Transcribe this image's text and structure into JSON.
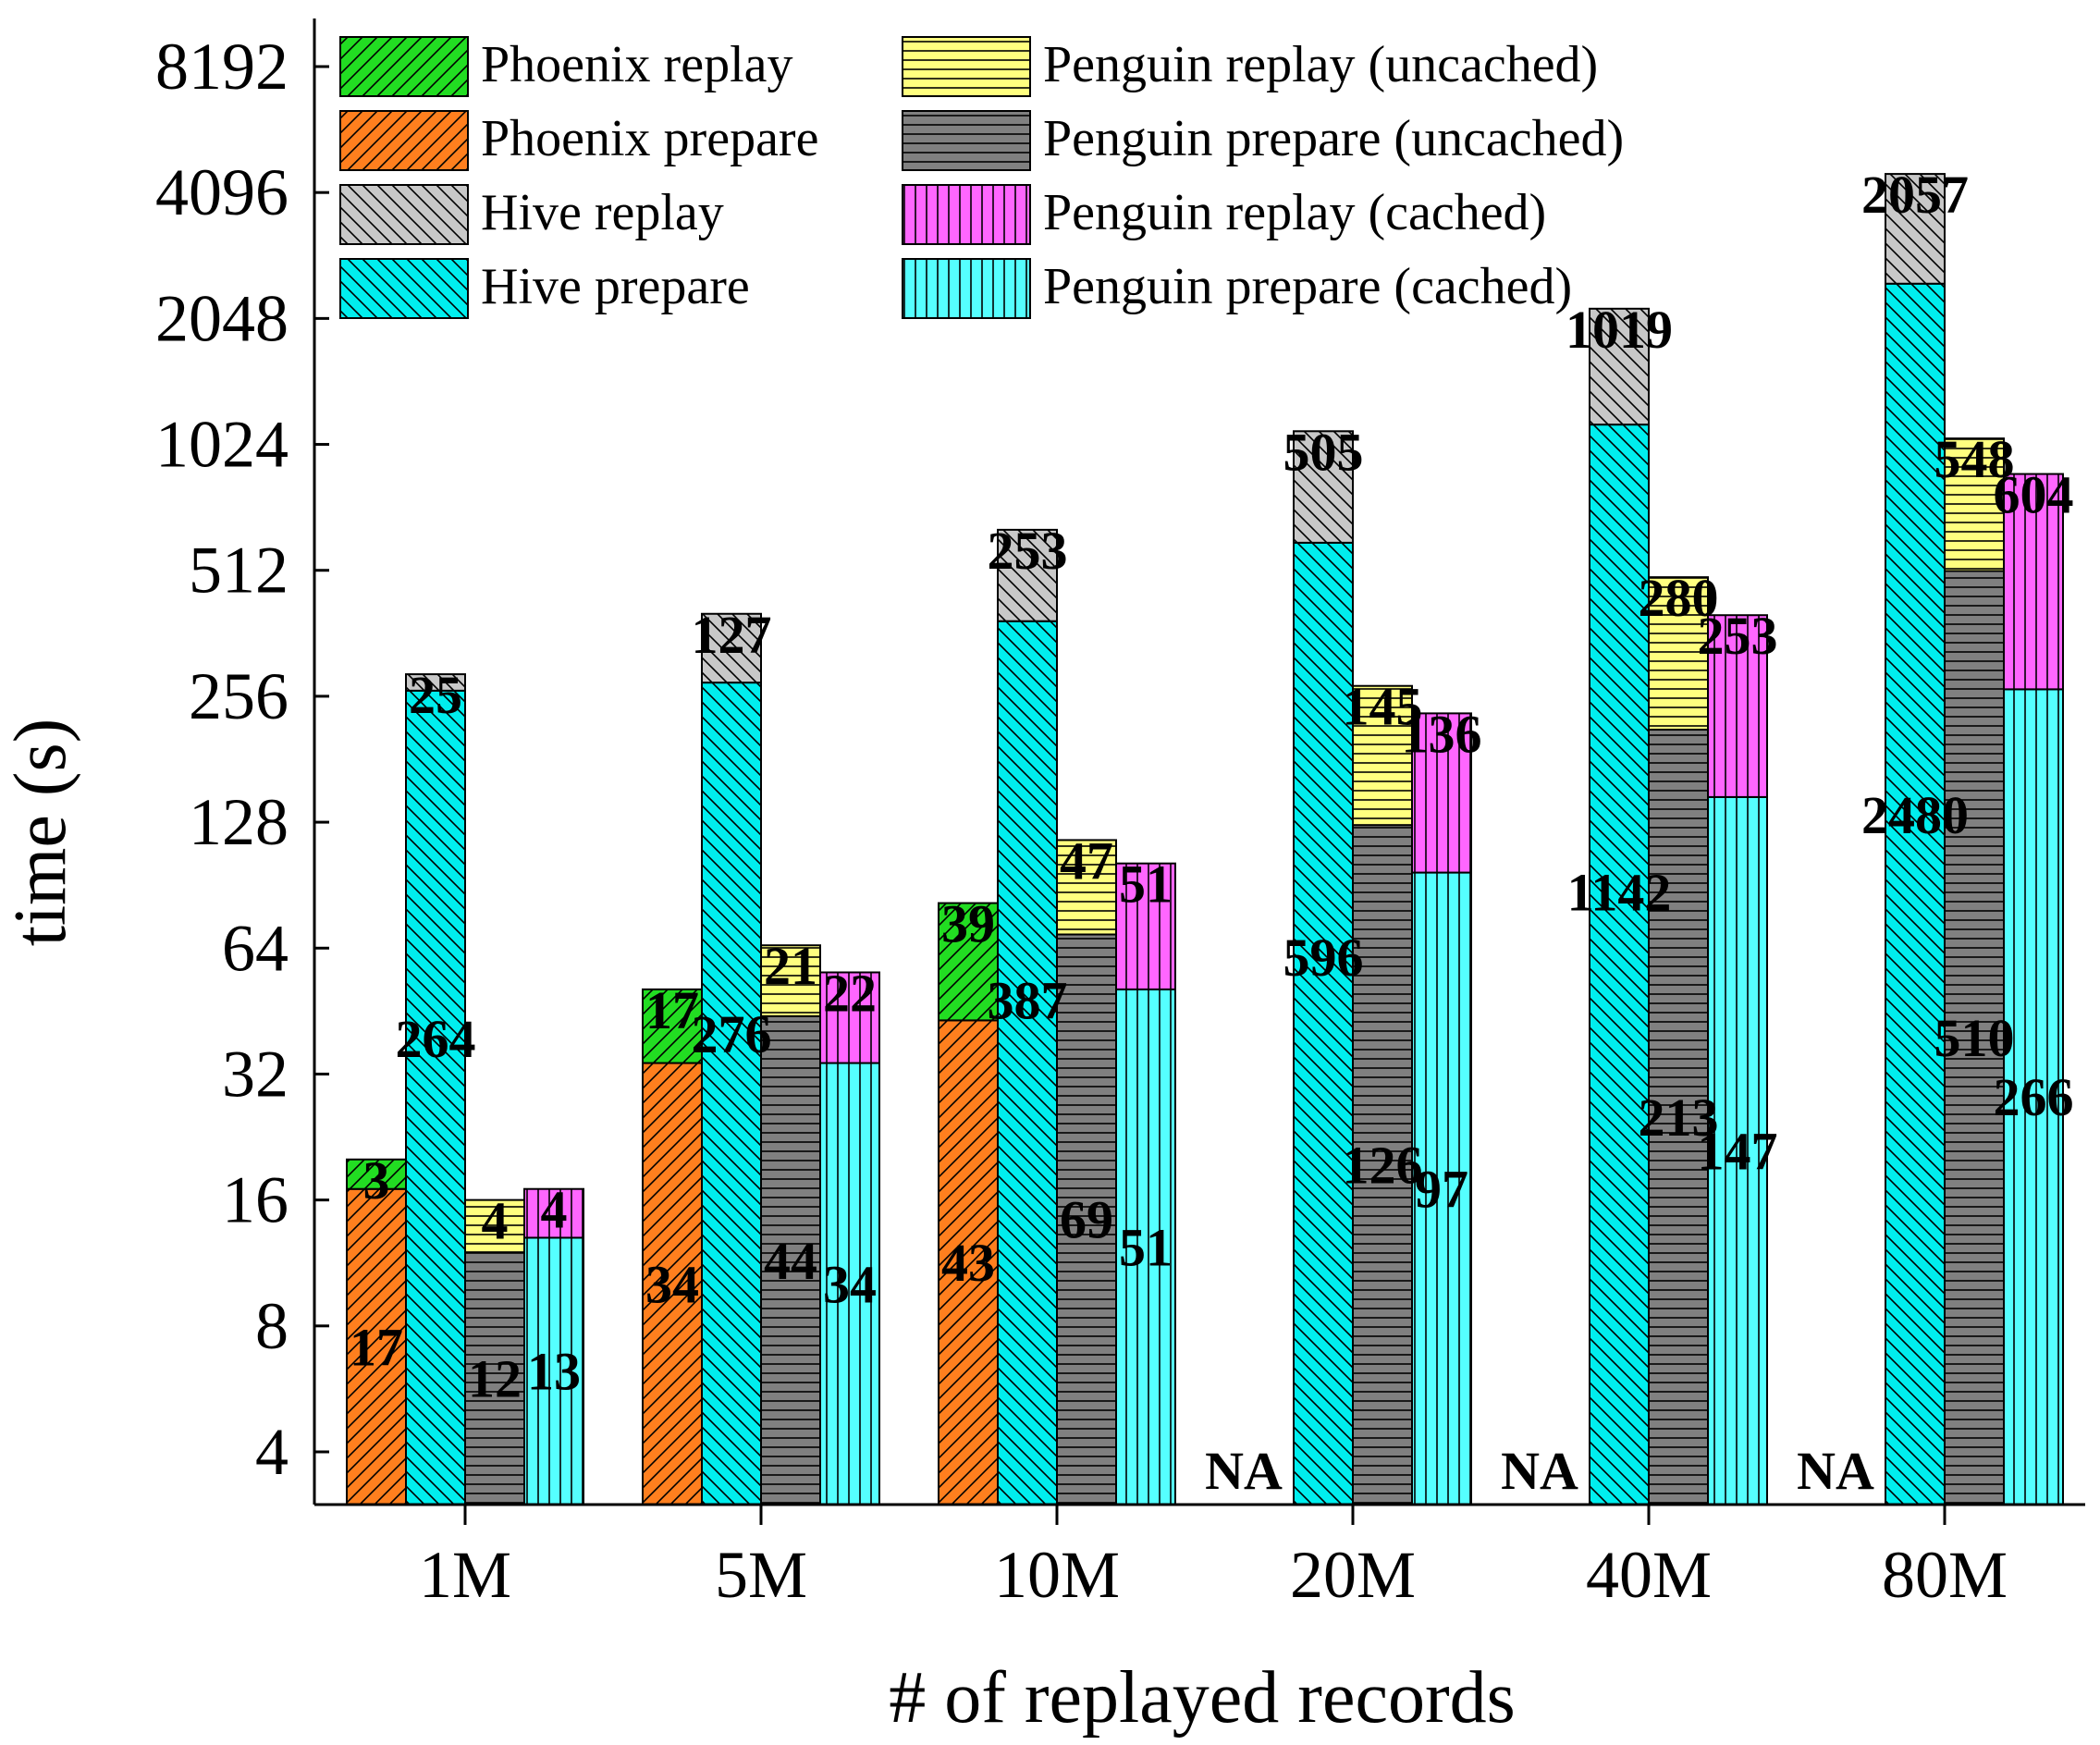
{
  "chart_data": {
    "type": "bar",
    "stacked": true,
    "xlabel": "# of replayed records",
    "ylabel": "time (s)",
    "yscale": "log2",
    "ylim": [
      2.8,
      9000
    ],
    "yticks": [
      4,
      8,
      16,
      32,
      64,
      128,
      256,
      512,
      1024,
      2048,
      4096,
      8192
    ],
    "categories": [
      "1M",
      "5M",
      "10M",
      "20M",
      "40M",
      "80M"
    ],
    "na_label": "NA",
    "grid": false,
    "legend_position": "top-left",
    "groups": [
      {
        "name": "Phoenix",
        "na": [
          false,
          false,
          false,
          true,
          true,
          true
        ],
        "segments": [
          {
            "series": "Phoenix prepare",
            "values": [
              17,
              34,
              43,
              null,
              null,
              null
            ]
          },
          {
            "series": "Phoenix replay",
            "values": [
              3,
              17,
              39,
              null,
              null,
              null
            ]
          }
        ]
      },
      {
        "name": "Hive",
        "na": [
          false,
          false,
          false,
          false,
          false,
          false
        ],
        "segments": [
          {
            "series": "Hive prepare",
            "values": [
              264,
              276,
              387,
              596,
              1142,
              2480
            ]
          },
          {
            "series": "Hive replay",
            "values": [
              25,
              127,
              253,
              505,
              1019,
              2057
            ]
          }
        ]
      },
      {
        "name": "Penguin (uncached)",
        "na": [
          false,
          false,
          false,
          false,
          false,
          false
        ],
        "segments": [
          {
            "series": "Penguin prepare (uncached)",
            "values": [
              12,
              44,
              69,
              126,
              213,
              510
            ]
          },
          {
            "series": "Penguin replay (uncached)",
            "values": [
              4,
              21,
              47,
              145,
              280,
              548
            ]
          }
        ]
      },
      {
        "name": "Penguin (cached)",
        "na": [
          false,
          false,
          false,
          false,
          false,
          false
        ],
        "segments": [
          {
            "series": "Penguin prepare (cached)",
            "values": [
              13,
              34,
              51,
              97,
              147,
              266
            ]
          },
          {
            "series": "Penguin replay (cached)",
            "values": [
              4,
              22,
              51,
              136,
              253,
              604
            ]
          }
        ]
      }
    ],
    "legend": [
      {
        "label": "Phoenix replay",
        "series": "Phoenix replay"
      },
      {
        "label": "Phoenix prepare",
        "series": "Phoenix prepare"
      },
      {
        "label": "Hive replay",
        "series": "Hive replay"
      },
      {
        "label": "Hive prepare",
        "series": "Hive prepare"
      },
      {
        "label": "Penguin replay (uncached)",
        "series": "Penguin replay (uncached)"
      },
      {
        "label": "Penguin prepare (uncached)",
        "series": "Penguin prepare (uncached)"
      },
      {
        "label": "Penguin replay (cached)",
        "series": "Penguin replay (cached)"
      },
      {
        "label": "Penguin prepare (cached)",
        "series": "Penguin prepare (cached)"
      }
    ],
    "styles": {
      "Phoenix replay": {
        "color": "#22dd22",
        "pattern": "diag-right"
      },
      "Phoenix prepare": {
        "color": "#ff7f1e",
        "pattern": "diag-right"
      },
      "Hive replay": {
        "color": "#c8c8c8",
        "pattern": "diag-left"
      },
      "Hive prepare": {
        "color": "#00eeee",
        "pattern": "diag-left"
      },
      "Penguin replay (uncached)": {
        "color": "#ffff7f",
        "pattern": "horizontal"
      },
      "Penguin prepare (uncached)": {
        "color": "#808080",
        "pattern": "horizontal"
      },
      "Penguin replay (cached)": {
        "color": "#ff66ff",
        "pattern": "vertical"
      },
      "Penguin prepare (cached)": {
        "color": "#55ffff",
        "pattern": "vertical"
      }
    }
  }
}
